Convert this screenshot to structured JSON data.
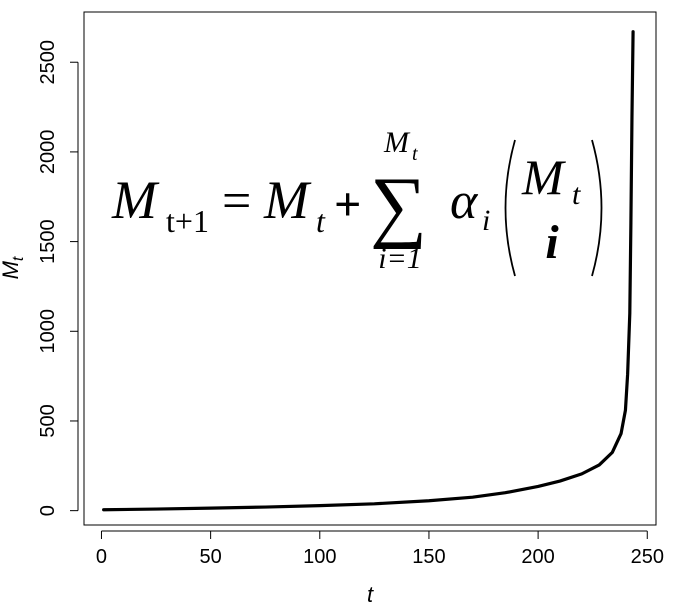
{
  "chart_data": {
    "type": "line",
    "title": "",
    "xlabel": "t",
    "ylabel": "M",
    "ylabel_subscript": "t",
    "xlim": [
      -8,
      254
    ],
    "ylim": [
      -80,
      2780
    ],
    "x_ticks": [
      0,
      50,
      100,
      150,
      200,
      250
    ],
    "y_ticks": [
      0,
      500,
      1000,
      1500,
      2000,
      2500
    ],
    "grid": false,
    "series": [
      {
        "color": "#000000",
        "x": [
          1,
          25,
          50,
          75,
          100,
          125,
          150,
          170,
          185,
          200,
          210,
          220,
          228,
          234,
          238,
          240,
          241,
          242,
          242.5,
          243,
          243.5
        ],
        "y": [
          5,
          9,
          14,
          20,
          28,
          38,
          55,
          75,
          100,
          135,
          165,
          205,
          255,
          325,
          430,
          560,
          760,
          1100,
          1600,
          2200,
          2670
        ]
      }
    ],
    "annotation": {
      "formula": {
        "lhs_symbol": "M",
        "lhs_sub": "t+1",
        "equals": "=",
        "rhs_symbol": "M",
        "rhs_sub": "t",
        "plus": "+",
        "sum_symbol": "∑",
        "sum_upper": "M",
        "sum_upper_sub": "t",
        "sum_lower": "i=1",
        "coef": "α",
        "coef_sub": "i",
        "binom_top": "M",
        "binom_top_sub": "t",
        "binom_bottom": "i"
      }
    }
  }
}
